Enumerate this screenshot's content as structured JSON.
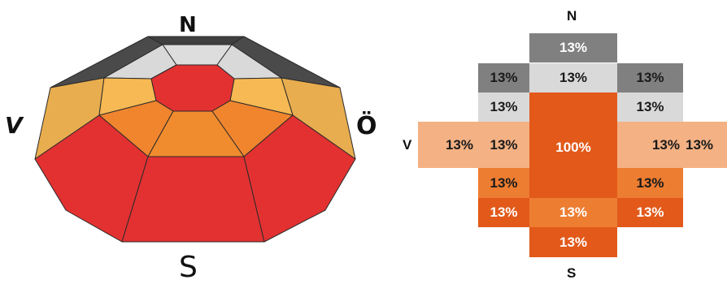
{
  "colors": {
    "roof_dark": "#4d4d4d",
    "light_gray": "#d9d9d9",
    "mid_gray": "#808080",
    "dark_orange": "#e2591a",
    "orange": "#ed7d31",
    "light_orange": "#f4b183",
    "dome_red": "#e33131",
    "dome_orange": "#f0852e",
    "dome_light_orange": "#f6b953",
    "dome_tan": "#e8ad4f"
  },
  "compass": {
    "north": "N",
    "west": "V",
    "east": "Ö",
    "south": "S"
  },
  "grid": {
    "north": "N",
    "south": "S",
    "west": "V",
    "cells": {
      "n_top": "13%",
      "nw": "13%",
      "n": "13%",
      "ne": "13%",
      "w_inner": "13%",
      "e_inner": "13%",
      "center": "100%",
      "w_far": "13%",
      "w_mid": "13%",
      "e_mid": "13%",
      "e_far": "13%",
      "sw_inner": "13%",
      "se_inner": "13%",
      "sw": "13%",
      "s": "13%",
      "se": "13%",
      "s_bottom": "13%"
    }
  }
}
